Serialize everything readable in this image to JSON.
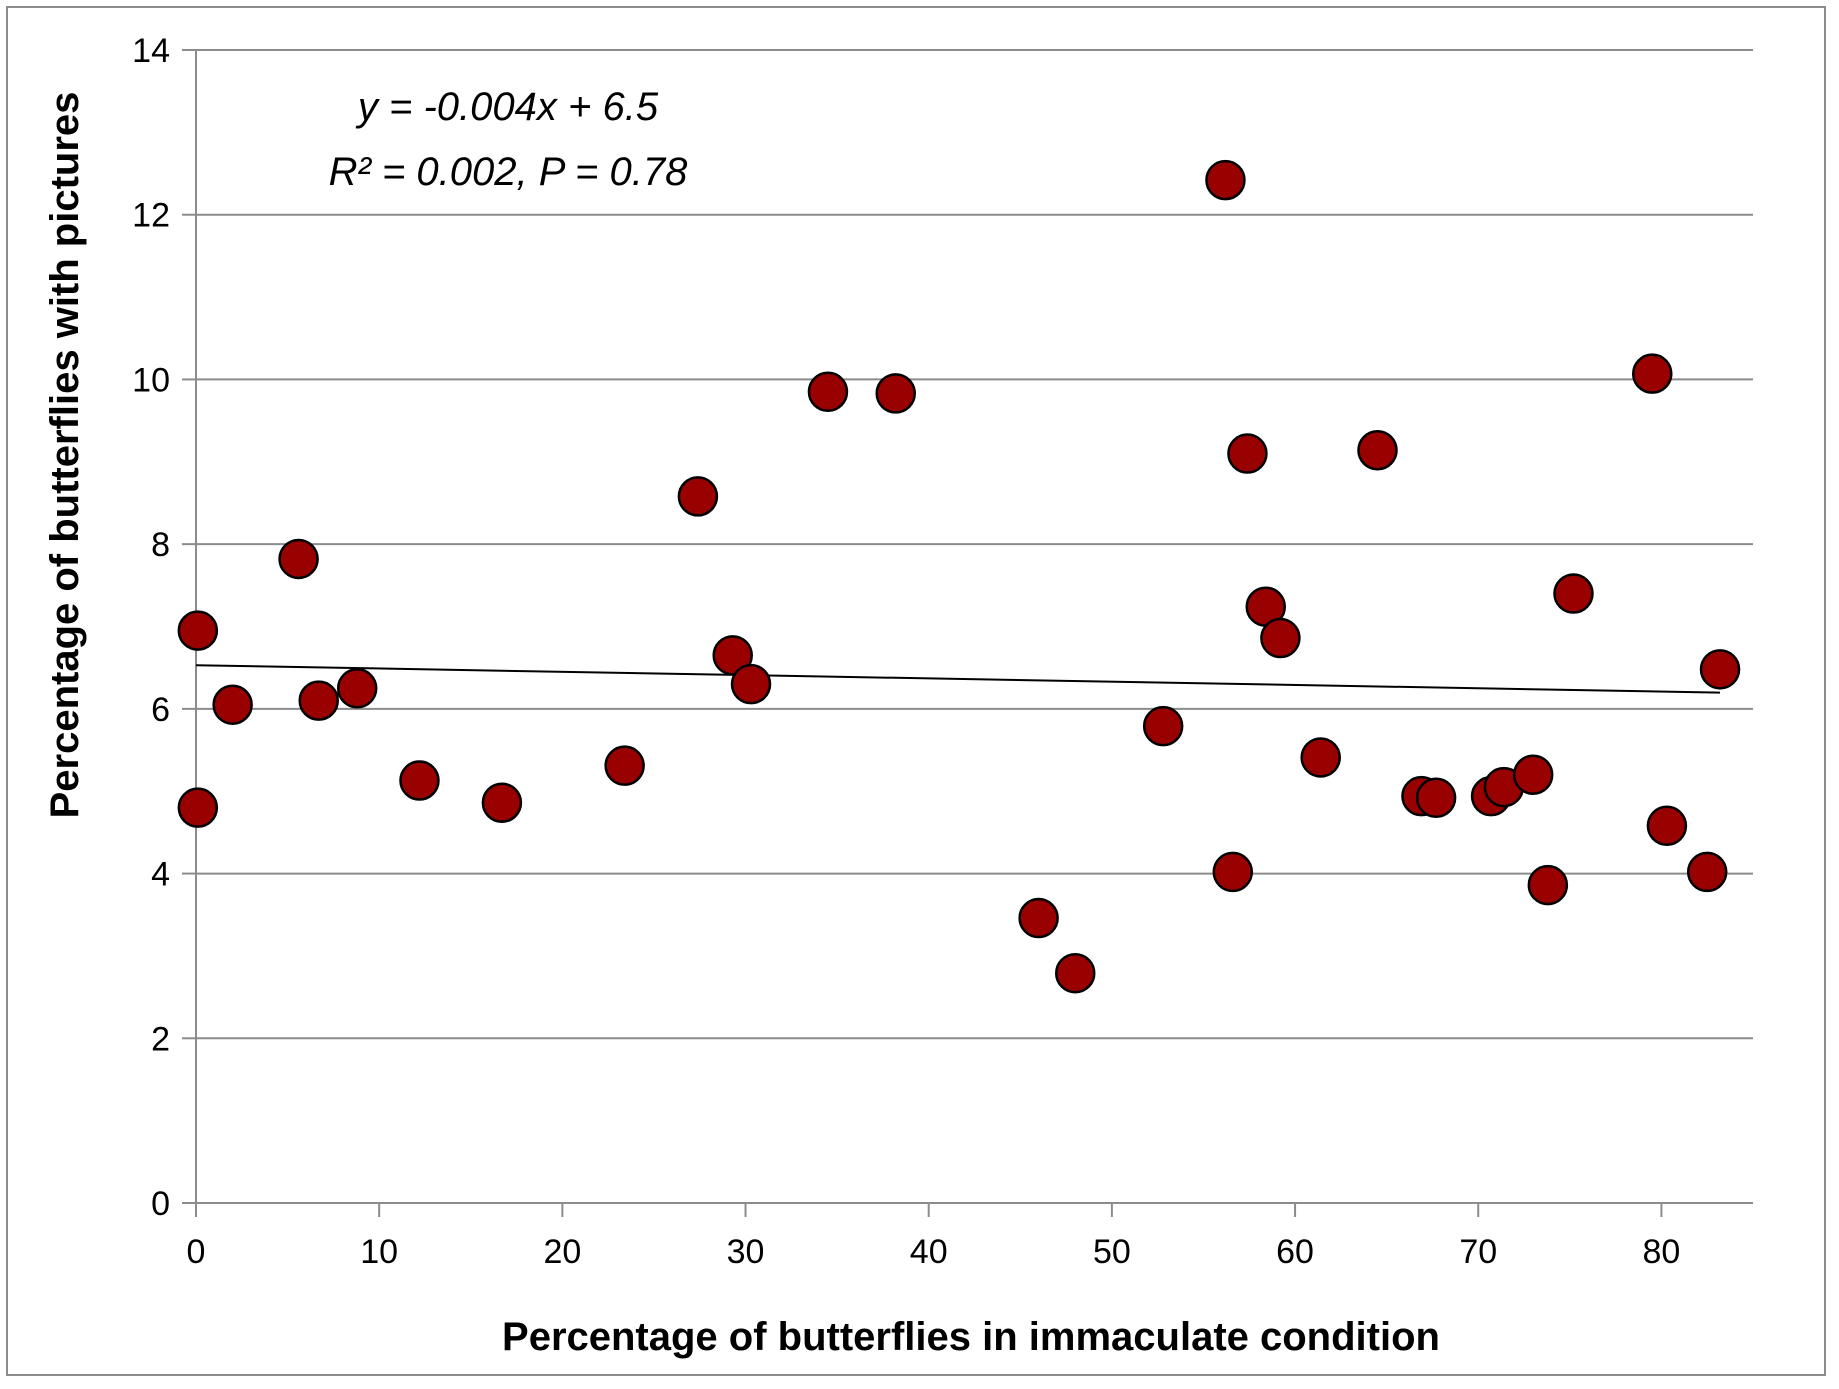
{
  "chart_data": {
    "type": "scatter",
    "title": "",
    "xlabel": "Percentage of butterflies in immaculate condition",
    "ylabel": "Percentage of butterflies with pictures",
    "xlim": [
      0,
      85
    ],
    "ylim": [
      0,
      14
    ],
    "xticks": [
      0,
      10,
      20,
      30,
      40,
      50,
      60,
      70,
      80
    ],
    "yticks": [
      0,
      2,
      4,
      6,
      8,
      10,
      12,
      14
    ],
    "grid": "horizontal",
    "marker_color": "#990000",
    "marker_edge_color": "#000000",
    "points": [
      {
        "x": 0.1,
        "y": 6.95
      },
      {
        "x": 0.1,
        "y": 4.8
      },
      {
        "x": 2.0,
        "y": 6.05
      },
      {
        "x": 5.6,
        "y": 7.82
      },
      {
        "x": 6.7,
        "y": 6.1
      },
      {
        "x": 8.8,
        "y": 6.25
      },
      {
        "x": 12.2,
        "y": 5.13
      },
      {
        "x": 16.7,
        "y": 4.86
      },
      {
        "x": 23.4,
        "y": 5.31
      },
      {
        "x": 27.4,
        "y": 8.58
      },
      {
        "x": 29.3,
        "y": 6.65
      },
      {
        "x": 30.3,
        "y": 6.3
      },
      {
        "x": 34.5,
        "y": 9.85
      },
      {
        "x": 38.2,
        "y": 9.83
      },
      {
        "x": 46.0,
        "y": 3.46
      },
      {
        "x": 48.0,
        "y": 2.79
      },
      {
        "x": 52.8,
        "y": 5.79
      },
      {
        "x": 56.2,
        "y": 12.42
      },
      {
        "x": 56.6,
        "y": 4.02
      },
      {
        "x": 57.4,
        "y": 9.1
      },
      {
        "x": 58.4,
        "y": 7.24
      },
      {
        "x": 59.2,
        "y": 6.86
      },
      {
        "x": 61.4,
        "y": 5.41
      },
      {
        "x": 64.5,
        "y": 9.14
      },
      {
        "x": 66.9,
        "y": 4.94
      },
      {
        "x": 67.7,
        "y": 4.92
      },
      {
        "x": 70.7,
        "y": 4.94
      },
      {
        "x": 71.4,
        "y": 5.05
      },
      {
        "x": 73.0,
        "y": 5.2
      },
      {
        "x": 73.8,
        "y": 3.86
      },
      {
        "x": 75.2,
        "y": 7.4
      },
      {
        "x": 79.5,
        "y": 10.07
      },
      {
        "x": 80.3,
        "y": 4.58
      },
      {
        "x": 82.5,
        "y": 4.02
      },
      {
        "x": 83.2,
        "y": 6.48
      }
    ],
    "trendline": {
      "slope": -0.004,
      "intercept": 6.53,
      "x_start": 0,
      "x_end": 83.2
    },
    "annotations": [
      "y = -0.004x + 6.5",
      "R² = 0.002, P = 0.78"
    ]
  }
}
